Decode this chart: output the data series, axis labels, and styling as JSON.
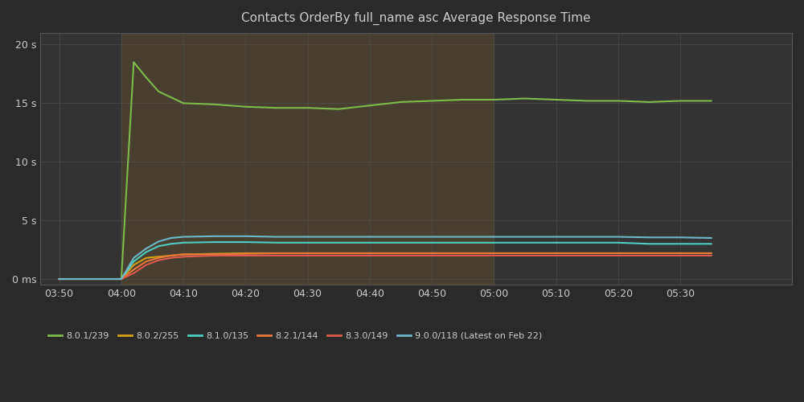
{
  "title": "Contacts OrderBy full_name asc Average Response Time",
  "background_color": "#2a2a2a",
  "plot_background_color": "#333333",
  "grid_color": "#555555",
  "text_color": "#cccccc",
  "x_tick_labels": [
    "03:50",
    "04:00",
    "04:10",
    "04:20",
    "04:30",
    "04:40",
    "04:50",
    "05:00",
    "05:10",
    "05:20",
    "05:30"
  ],
  "x_tick_positions": [
    -10,
    0,
    10,
    20,
    30,
    40,
    50,
    60,
    70,
    80,
    90
  ],
  "y_tick_labels": [
    "0 ms",
    "5 s",
    "10 s",
    "15 s",
    "20 s"
  ],
  "y_tick_values": [
    0,
    5,
    10,
    15,
    20
  ],
  "x_min": -13,
  "x_max": 108,
  "y_min": -0.5,
  "y_max": 21,
  "series": [
    {
      "name": "8.0.1/239",
      "color": "#7dbb4a",
      "line_width": 1.5,
      "data_x": [
        -10,
        -5,
        0,
        2,
        4,
        6,
        10,
        15,
        20,
        25,
        30,
        35,
        40,
        45,
        50,
        55,
        60,
        65,
        70,
        75,
        80,
        85,
        90,
        95
      ],
      "data_y": [
        0,
        0,
        0,
        18.5,
        17.2,
        16.0,
        15.0,
        14.9,
        14.7,
        14.6,
        14.6,
        14.5,
        14.8,
        15.1,
        15.2,
        15.3,
        15.3,
        15.4,
        15.3,
        15.2,
        15.2,
        15.1,
        15.2,
        15.2
      ]
    },
    {
      "name": "8.0.2/255",
      "color": "#d4a017",
      "line_width": 1.5,
      "data_x": [
        -10,
        -5,
        0,
        2,
        4,
        6,
        8,
        10,
        15,
        20,
        25,
        30,
        35,
        40,
        45,
        50,
        55,
        60,
        65,
        70,
        75,
        80,
        85,
        90,
        95
      ],
      "data_y": [
        0,
        0,
        0,
        1.2,
        1.8,
        1.9,
        2.0,
        2.1,
        2.15,
        2.2,
        2.2,
        2.2,
        2.2,
        2.2,
        2.2,
        2.2,
        2.2,
        2.2,
        2.2,
        2.2,
        2.2,
        2.2,
        2.2,
        2.2,
        2.2
      ]
    },
    {
      "name": "8.1.0/135",
      "color": "#4ecdc4",
      "line_width": 1.5,
      "data_x": [
        -10,
        -5,
        0,
        2,
        4,
        6,
        8,
        10,
        15,
        20,
        25,
        30,
        35,
        40,
        45,
        50,
        55,
        60,
        65,
        70,
        75,
        80,
        85,
        90,
        95
      ],
      "data_y": [
        0,
        0,
        0,
        1.5,
        2.3,
        2.8,
        3.0,
        3.1,
        3.15,
        3.15,
        3.1,
        3.1,
        3.1,
        3.1,
        3.1,
        3.1,
        3.1,
        3.1,
        3.1,
        3.1,
        3.1,
        3.1,
        3.0,
        3.0,
        3.0
      ]
    },
    {
      "name": "8.2.1/144",
      "color": "#e8773a",
      "line_width": 1.5,
      "data_x": [
        -10,
        -5,
        0,
        2,
        4,
        6,
        8,
        10,
        15,
        20,
        25,
        30,
        35,
        40,
        45,
        50,
        55,
        60,
        65,
        70,
        75,
        80,
        85,
        90,
        95
      ],
      "data_y": [
        0,
        0,
        0,
        0.8,
        1.5,
        1.8,
        2.0,
        2.1,
        2.1,
        2.15,
        2.2,
        2.2,
        2.2,
        2.2,
        2.2,
        2.2,
        2.2,
        2.2,
        2.2,
        2.2,
        2.2,
        2.2,
        2.2,
        2.2,
        2.2
      ]
    },
    {
      "name": "8.3.0/149",
      "color": "#e05a4e",
      "line_width": 1.5,
      "data_x": [
        -10,
        -5,
        0,
        2,
        4,
        6,
        8,
        10,
        15,
        20,
        25,
        30,
        35,
        40,
        45,
        50,
        55,
        60,
        65,
        70,
        75,
        80,
        85,
        90,
        95
      ],
      "data_y": [
        0,
        0,
        0,
        0.5,
        1.2,
        1.6,
        1.8,
        1.9,
        2.0,
        2.0,
        2.0,
        2.0,
        2.0,
        2.0,
        2.0,
        2.0,
        2.0,
        2.0,
        2.0,
        2.0,
        2.0,
        2.0,
        2.0,
        2.0,
        2.0
      ]
    },
    {
      "name": "9.0.0/118 (Latest on Feb 22)",
      "color": "#6bb8c9",
      "line_width": 1.5,
      "data_x": [
        -10,
        -5,
        0,
        2,
        4,
        6,
        8,
        10,
        15,
        20,
        25,
        30,
        35,
        40,
        45,
        50,
        55,
        60,
        65,
        70,
        75,
        80,
        85,
        90,
        95
      ],
      "data_y": [
        0,
        0,
        0,
        1.8,
        2.6,
        3.2,
        3.5,
        3.6,
        3.65,
        3.65,
        3.6,
        3.6,
        3.6,
        3.6,
        3.6,
        3.6,
        3.6,
        3.6,
        3.6,
        3.6,
        3.6,
        3.6,
        3.55,
        3.55,
        3.5
      ]
    }
  ],
  "shaded_region": {
    "x_start": 0,
    "x_end": 60,
    "color": "#5a4a30",
    "alpha": 0.55
  },
  "legend_colors": [
    "#7dbb4a",
    "#d4a017",
    "#4ecdc4",
    "#e8773a",
    "#e05a4e",
    "#6bb8c9"
  ],
  "legend_names": [
    "8.0.1/239",
    "8.0.2/255",
    "8.1.0/135",
    "8.2.1/144",
    "8.3.0/149",
    "9.0.0/118 (Latest on Feb 22)"
  ]
}
